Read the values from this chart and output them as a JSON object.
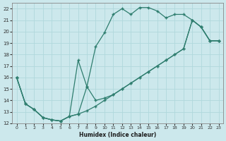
{
  "xlabel": "Humidex (Indice chaleur)",
  "bg_color": "#cce8ec",
  "grid_color": "#b0d8dc",
  "line_color": "#2e7d6e",
  "xlim": [
    -0.5,
    23.5
  ],
  "ylim": [
    12,
    22.5
  ],
  "yticks": [
    12,
    13,
    14,
    15,
    16,
    17,
    18,
    19,
    20,
    21,
    22
  ],
  "xticks": [
    0,
    1,
    2,
    3,
    4,
    5,
    6,
    7,
    8,
    9,
    10,
    11,
    12,
    13,
    14,
    15,
    16,
    17,
    18,
    19,
    20,
    21,
    22,
    23
  ],
  "line1_x": [
    0,
    1,
    2,
    3,
    4,
    5,
    6,
    7,
    8,
    9,
    10,
    11,
    12,
    13,
    14,
    15,
    16,
    17,
    18,
    19,
    20,
    21,
    22,
    23
  ],
  "line1_y": [
    16.0,
    13.7,
    13.2,
    12.5,
    12.3,
    12.2,
    12.6,
    12.8,
    15.2,
    18.7,
    19.9,
    21.5,
    22.0,
    21.5,
    22.1,
    22.1,
    21.8,
    21.2,
    21.5,
    21.5,
    21.0,
    20.4,
    19.2,
    19.2
  ],
  "line2_x": [
    0,
    1,
    2,
    3,
    4,
    5,
    6,
    7,
    8,
    9,
    10,
    11,
    12,
    13,
    14,
    15,
    16,
    17,
    18,
    19,
    20,
    21,
    22,
    23
  ],
  "line2_y": [
    16.0,
    13.7,
    13.2,
    12.5,
    12.3,
    12.2,
    12.6,
    17.5,
    15.2,
    14.0,
    14.2,
    14.5,
    15.0,
    15.5,
    16.0,
    16.5,
    17.0,
    17.5,
    18.0,
    18.5,
    21.0,
    20.4,
    19.2,
    19.2
  ],
  "line3_x": [
    0,
    1,
    2,
    3,
    4,
    5,
    6,
    7,
    8,
    9,
    10,
    11,
    12,
    13,
    14,
    15,
    16,
    17,
    18,
    19,
    20,
    21,
    22,
    23
  ],
  "line3_y": [
    16.0,
    13.7,
    13.2,
    12.5,
    12.3,
    12.2,
    12.6,
    12.8,
    13.1,
    13.5,
    14.0,
    14.5,
    15.0,
    15.5,
    16.0,
    16.5,
    17.0,
    17.5,
    18.0,
    18.5,
    21.0,
    20.4,
    19.2,
    19.2
  ]
}
